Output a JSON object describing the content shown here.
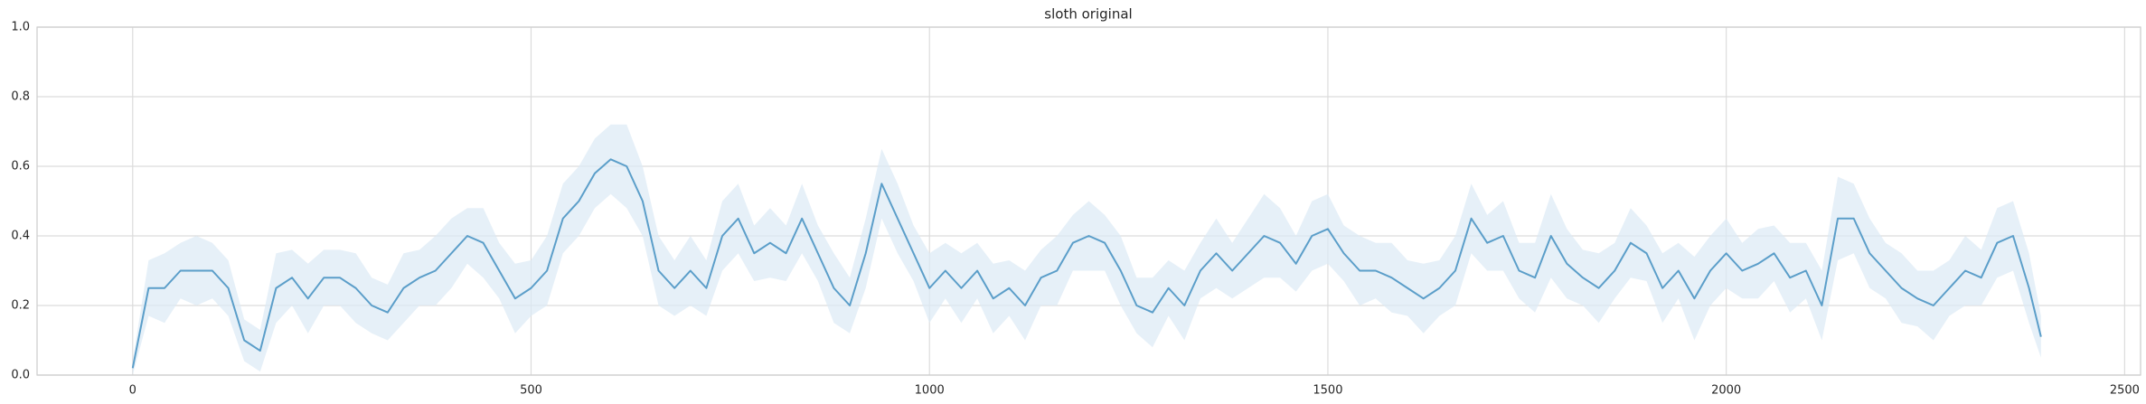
{
  "chart_data": {
    "type": "line",
    "title": "sloth original",
    "x": [
      0,
      20,
      40,
      60,
      80,
      100,
      120,
      140,
      160,
      180,
      200,
      220,
      240,
      260,
      280,
      300,
      320,
      340,
      360,
      380,
      400,
      420,
      440,
      460,
      480,
      500,
      520,
      540,
      560,
      580,
      600,
      620,
      640,
      660,
      680,
      700,
      720,
      740,
      760,
      780,
      800,
      820,
      840,
      860,
      880,
      900,
      920,
      940,
      960,
      980,
      1000,
      1020,
      1040,
      1060,
      1080,
      1100,
      1120,
      1140,
      1160,
      1180,
      1200,
      1220,
      1240,
      1260,
      1280,
      1300,
      1320,
      1340,
      1360,
      1380,
      1400,
      1420,
      1440,
      1460,
      1480,
      1500,
      1520,
      1540,
      1560,
      1580,
      1600,
      1620,
      1640,
      1660,
      1680,
      1700,
      1720,
      1740,
      1760,
      1780,
      1800,
      1820,
      1840,
      1860,
      1880,
      1900,
      1920,
      1940,
      1960,
      1980,
      2000,
      2020,
      2040,
      2060,
      2080,
      2100,
      2120,
      2140,
      2160,
      2180,
      2200,
      2220,
      2240,
      2260,
      2280,
      2300,
      2320,
      2340,
      2360,
      2380,
      2395
    ],
    "values": [
      0.02,
      0.25,
      0.25,
      0.3,
      0.3,
      0.3,
      0.25,
      0.1,
      0.07,
      0.25,
      0.28,
      0.22,
      0.28,
      0.28,
      0.25,
      0.2,
      0.18,
      0.25,
      0.28,
      0.3,
      0.35,
      0.4,
      0.38,
      0.3,
      0.22,
      0.25,
      0.3,
      0.45,
      0.5,
      0.58,
      0.62,
      0.6,
      0.5,
      0.3,
      0.25,
      0.3,
      0.25,
      0.4,
      0.45,
      0.35,
      0.38,
      0.35,
      0.45,
      0.35,
      0.25,
      0.2,
      0.35,
      0.55,
      0.45,
      0.35,
      0.25,
      0.3,
      0.25,
      0.3,
      0.22,
      0.25,
      0.2,
      0.28,
      0.3,
      0.38,
      0.4,
      0.38,
      0.3,
      0.2,
      0.18,
      0.25,
      0.2,
      0.3,
      0.35,
      0.3,
      0.35,
      0.4,
      0.38,
      0.32,
      0.4,
      0.42,
      0.35,
      0.3,
      0.3,
      0.28,
      0.25,
      0.22,
      0.25,
      0.3,
      0.45,
      0.38,
      0.4,
      0.3,
      0.28,
      0.4,
      0.32,
      0.28,
      0.25,
      0.3,
      0.38,
      0.35,
      0.25,
      0.3,
      0.22,
      0.3,
      0.35,
      0.3,
      0.32,
      0.35,
      0.28,
      0.3,
      0.2,
      0.45,
      0.45,
      0.35,
      0.3,
      0.25,
      0.22,
      0.2,
      0.25,
      0.3,
      0.28,
      0.38,
      0.4,
      0.25,
      0.11
    ],
    "errors": [
      0.02,
      0.08,
      0.1,
      0.08,
      0.1,
      0.08,
      0.08,
      0.06,
      0.06,
      0.1,
      0.08,
      0.1,
      0.08,
      0.08,
      0.1,
      0.08,
      0.08,
      0.1,
      0.08,
      0.1,
      0.1,
      0.08,
      0.1,
      0.08,
      0.1,
      0.08,
      0.1,
      0.1,
      0.1,
      0.1,
      0.1,
      0.12,
      0.1,
      0.1,
      0.08,
      0.1,
      0.08,
      0.1,
      0.1,
      0.08,
      0.1,
      0.08,
      0.1,
      0.08,
      0.1,
      0.08,
      0.1,
      0.1,
      0.1,
      0.08,
      0.1,
      0.08,
      0.1,
      0.08,
      0.1,
      0.08,
      0.1,
      0.08,
      0.1,
      0.08,
      0.1,
      0.08,
      0.1,
      0.08,
      0.1,
      0.08,
      0.1,
      0.08,
      0.1,
      0.08,
      0.1,
      0.12,
      0.1,
      0.08,
      0.1,
      0.1,
      0.08,
      0.1,
      0.08,
      0.1,
      0.08,
      0.1,
      0.08,
      0.1,
      0.1,
      0.08,
      0.1,
      0.08,
      0.1,
      0.12,
      0.1,
      0.08,
      0.1,
      0.08,
      0.1,
      0.08,
      0.1,
      0.08,
      0.12,
      0.1,
      0.1,
      0.08,
      0.1,
      0.08,
      0.1,
      0.08,
      0.1,
      0.12,
      0.1,
      0.1,
      0.08,
      0.1,
      0.08,
      0.1,
      0.08,
      0.1,
      0.08,
      0.1,
      0.1,
      0.1,
      0.06
    ],
    "color": "#5b9ec9",
    "band_color": "#dbe9f5",
    "xlim": [
      -120,
      2520
    ],
    "ylim": [
      0,
      1
    ],
    "xticks": [
      0,
      500,
      1000,
      1500,
      2000,
      2500
    ],
    "yticks": [
      {
        "value": 0,
        "label": "0.0"
      },
      {
        "value": 0.2,
        "label": "0.2"
      },
      {
        "value": 0.4,
        "label": "0.4"
      },
      {
        "value": 0.6,
        "label": "0.6"
      },
      {
        "value": 0.8,
        "label": "0.8"
      },
      {
        "value": 1,
        "label": "1.0"
      }
    ],
    "grid": true
  }
}
